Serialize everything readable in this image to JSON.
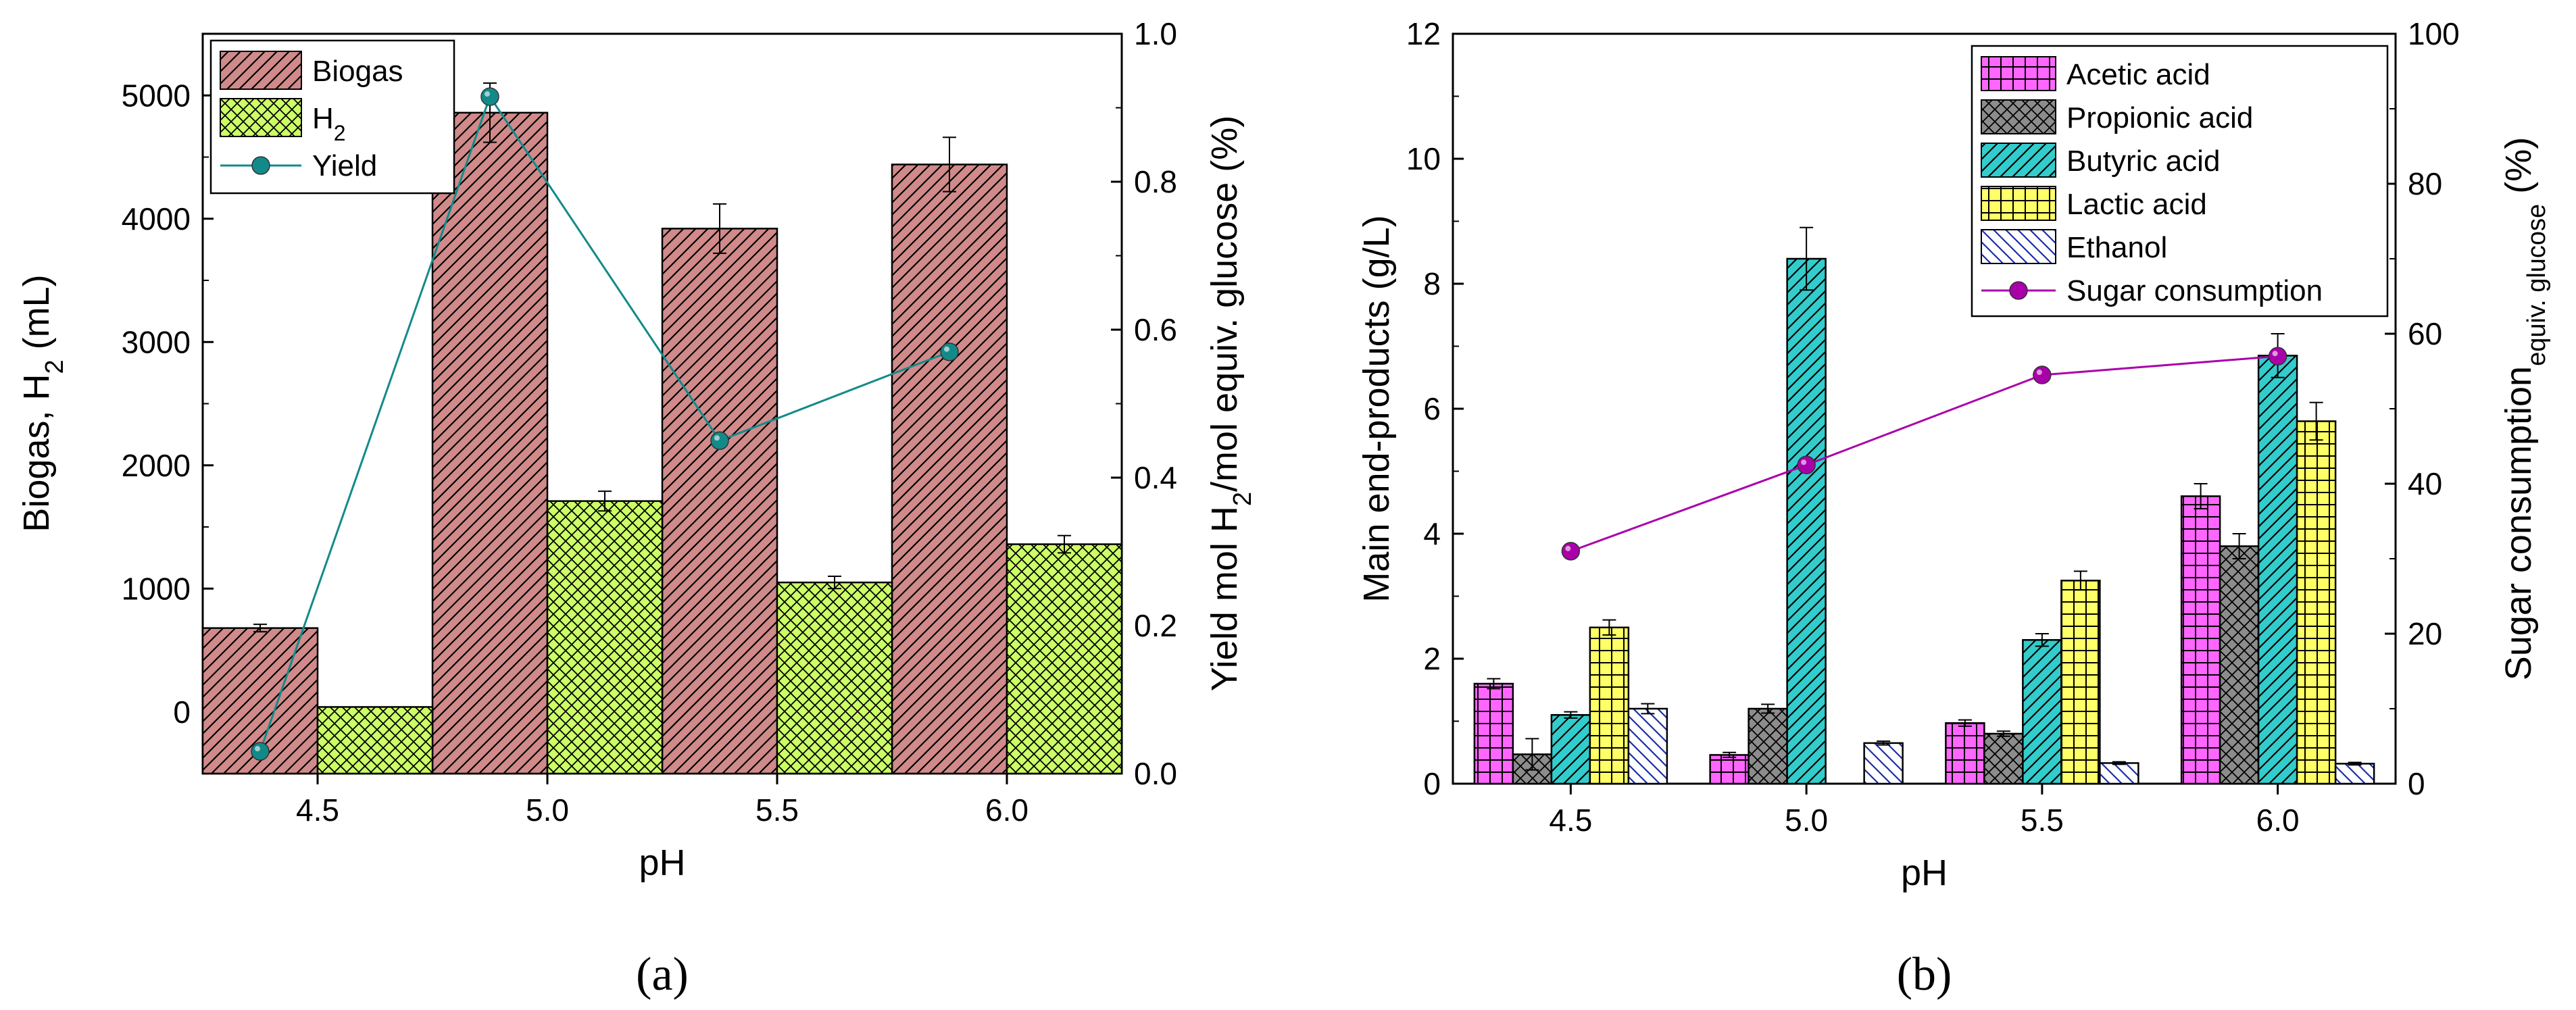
{
  "chart_data": [
    {
      "type": "bar",
      "panel_label": "(a)",
      "categories": [
        "4.5",
        "5.0",
        "5.5",
        "6.0"
      ],
      "xlabel": "pH",
      "ylabel_left_html": "Biogas, H<tspan baseline-shift='sub' font-size='38'>2</tspan> (mL)",
      "ylabel_left": "Biogas, H2 (mL)",
      "ylabel_right": "Yield mol H2/mol equiv. glucose (%)",
      "ylim_left": [
        -500,
        5500
      ],
      "yticks_left": [
        0,
        1000,
        2000,
        3000,
        4000,
        5000
      ],
      "ylim_right": [
        0,
        1.0
      ],
      "yticks_right": [
        "0.0",
        "0.2",
        "0.4",
        "0.6",
        "0.8",
        "1.0"
      ],
      "legend_position": "top-left",
      "series": [
        {
          "name": "Biogas",
          "kind": "bar",
          "values": [
            680,
            4860,
            3920,
            4440
          ],
          "errors": [
            30,
            240,
            200,
            220
          ],
          "color": "#d08a8a",
          "pattern": "diag"
        },
        {
          "name": "H2",
          "kind": "bar",
          "values": [
            40,
            1710,
            1050,
            1360
          ],
          "errors": [
            0,
            80,
            50,
            70
          ],
          "color": "#ccff66",
          "pattern": "cross"
        },
        {
          "name": "Yield",
          "kind": "line",
          "axis": "right",
          "values": [
            0.03,
            0.915,
            0.45,
            0.57
          ],
          "color": "#138a8a"
        }
      ]
    },
    {
      "type": "bar",
      "panel_label": "(b)",
      "categories": [
        "4.5",
        "5.0",
        "5.5",
        "6.0"
      ],
      "xlabel": "pH",
      "ylabel_left": "Main end-products (g/L)",
      "ylabel_right": "Sugar consumption equiv. glucose (%)",
      "ylabel_right_main": "Sugar consumption",
      "ylabel_right_sub": "equiv. glucose",
      "ylabel_right_tail": "(%)",
      "ylim_left": [
        0,
        12
      ],
      "yticks_left": [
        "0",
        "2",
        "4",
        "6",
        "8",
        "10",
        "12"
      ],
      "ylim_right": [
        0,
        100
      ],
      "yticks_right": [
        "0",
        "20",
        "40",
        "60",
        "80",
        "100"
      ],
      "legend_position": "top-right",
      "series": [
        {
          "name": "Acetic acid",
          "kind": "bar",
          "values": [
            1.6,
            0.46,
            0.97,
            4.6
          ],
          "errors": [
            0.08,
            0.04,
            0.05,
            0.2
          ],
          "color": "#ff66ff",
          "pattern": "grid"
        },
        {
          "name": "Propionic acid",
          "kind": "bar",
          "values": [
            0.47,
            1.2,
            0.8,
            3.8
          ],
          "errors": [
            0.25,
            0.07,
            0.04,
            0.2
          ],
          "color": "#8c8c8c",
          "pattern": "cross"
        },
        {
          "name": "Butyric acid",
          "kind": "bar",
          "values": [
            1.1,
            8.4,
            2.3,
            6.85
          ],
          "errors": [
            0.05,
            0.5,
            0.1,
            0.35
          ],
          "color": "#33cccc",
          "pattern": "diag"
        },
        {
          "name": "Lactic acid",
          "kind": "bar",
          "values": [
            2.5,
            0,
            3.25,
            5.8
          ],
          "errors": [
            0.12,
            0,
            0.15,
            0.3
          ],
          "color": "#ffff66",
          "pattern": "grid"
        },
        {
          "name": "Ethanol",
          "kind": "bar",
          "values": [
            1.2,
            0.65,
            0.33,
            0.32
          ],
          "errors": [
            0.08,
            0.03,
            0.02,
            0.02
          ],
          "color": "#ffffff",
          "pattern": "backdiag"
        },
        {
          "name": "Sugar consumption",
          "kind": "line",
          "axis": "right",
          "values": [
            31,
            42.5,
            54.5,
            57
          ],
          "color": "#aa00aa"
        }
      ]
    }
  ]
}
